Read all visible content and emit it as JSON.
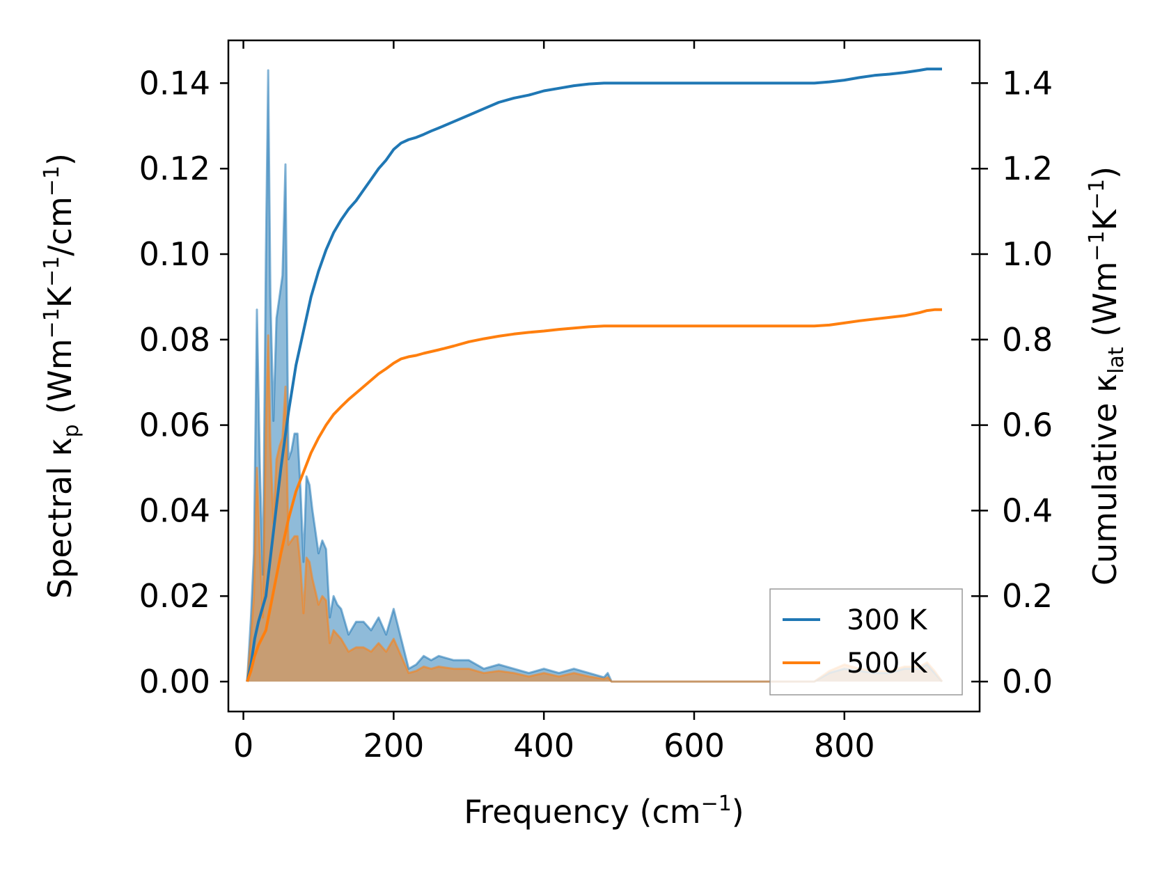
{
  "chart_data": {
    "type": "line",
    "xlabel": "Frequency (cm",
    "xlabel_sup": "−1",
    "xlabel_end": ")",
    "ylabel": {
      "prefix": "Spectral κ",
      "sub": "p",
      "units": [
        {
          "t": " (Wm",
          "s": "−1"
        },
        {
          "t": "K",
          "s": "−1"
        },
        {
          "t": "/cm",
          "s": "−1"
        },
        {
          "t": ")",
          "s": ""
        }
      ]
    },
    "y2label": {
      "prefix": "Cumulative κ",
      "sub": "lat",
      "units": [
        {
          "t": " (Wm",
          "s": "−1"
        },
        {
          "t": "K",
          "s": "−1"
        },
        {
          "t": ")",
          "s": ""
        }
      ]
    },
    "xlim": [
      -20,
      980
    ],
    "ylim": [
      -0.007,
      0.15
    ],
    "y2lim": [
      -0.07,
      1.5
    ],
    "xticks": [
      0,
      200,
      400,
      600,
      800
    ],
    "yticks": [
      0.0,
      0.02,
      0.04,
      0.06,
      0.08,
      0.1,
      0.12,
      0.14
    ],
    "y2ticks": [
      0.0,
      0.2,
      0.4,
      0.6,
      0.8,
      1.0,
      1.2,
      1.4
    ],
    "legend": {
      "position": "lower-right",
      "entries": [
        "300 K",
        "500 K"
      ]
    },
    "colors": {
      "300 K": "#1f77b4",
      "500 K": "#ff7f0e"
    },
    "spectral": [
      {
        "name": "300 K",
        "x": [
          5,
          10,
          14,
          18,
          22,
          26,
          30,
          33,
          36,
          40,
          44,
          48,
          52,
          56,
          60,
          64,
          68,
          72,
          76,
          80,
          84,
          88,
          92,
          96,
          100,
          105,
          110,
          115,
          120,
          125,
          130,
          140,
          150,
          160,
          170,
          180,
          190,
          200,
          210,
          220,
          230,
          240,
          250,
          260,
          280,
          300,
          320,
          340,
          360,
          380,
          400,
          420,
          440,
          460,
          480,
          485,
          490,
          500,
          600,
          700,
          760,
          780,
          800,
          820,
          840,
          860,
          880,
          900,
          910,
          920,
          930
        ],
        "y": [
          0.0,
          0.015,
          0.03,
          0.087,
          0.05,
          0.025,
          0.1,
          0.143,
          0.09,
          0.061,
          0.085,
          0.09,
          0.095,
          0.121,
          0.052,
          0.054,
          0.058,
          0.058,
          0.045,
          0.028,
          0.048,
          0.046,
          0.04,
          0.035,
          0.03,
          0.033,
          0.031,
          0.015,
          0.02,
          0.018,
          0.017,
          0.011,
          0.014,
          0.014,
          0.012,
          0.015,
          0.011,
          0.017,
          0.01,
          0.003,
          0.004,
          0.006,
          0.005,
          0.006,
          0.005,
          0.005,
          0.003,
          0.004,
          0.003,
          0.002,
          0.003,
          0.002,
          0.003,
          0.002,
          0.001,
          0.002,
          0.0,
          0.0,
          0.0,
          0.0,
          0.0,
          0.002,
          0.003,
          0.0025,
          0.002,
          0.002,
          0.003,
          0.003,
          0.004,
          0.002,
          0.0
        ]
      },
      {
        "name": "500 K",
        "x": [
          5,
          10,
          14,
          18,
          22,
          26,
          30,
          33,
          36,
          40,
          44,
          48,
          52,
          56,
          60,
          64,
          68,
          72,
          76,
          80,
          84,
          88,
          92,
          96,
          100,
          105,
          110,
          115,
          120,
          125,
          130,
          140,
          150,
          160,
          170,
          180,
          190,
          200,
          210,
          220,
          230,
          240,
          250,
          260,
          280,
          300,
          320,
          340,
          360,
          380,
          400,
          420,
          440,
          460,
          480,
          485,
          490,
          500,
          600,
          700,
          760,
          780,
          800,
          820,
          840,
          860,
          880,
          900,
          910,
          920,
          930
        ],
        "y": [
          0.0,
          0.01,
          0.02,
          0.05,
          0.03,
          0.015,
          0.06,
          0.081,
          0.055,
          0.037,
          0.052,
          0.055,
          0.057,
          0.069,
          0.032,
          0.033,
          0.034,
          0.034,
          0.027,
          0.016,
          0.029,
          0.028,
          0.024,
          0.021,
          0.018,
          0.02,
          0.019,
          0.009,
          0.012,
          0.011,
          0.01,
          0.007,
          0.008,
          0.008,
          0.007,
          0.009,
          0.007,
          0.01,
          0.006,
          0.002,
          0.0025,
          0.0035,
          0.003,
          0.0035,
          0.003,
          0.003,
          0.002,
          0.0025,
          0.002,
          0.0012,
          0.002,
          0.0012,
          0.002,
          0.0012,
          0.0006,
          0.001,
          0.0,
          0.0,
          0.0,
          0.0,
          0.0,
          0.0025,
          0.004,
          0.003,
          0.0025,
          0.0025,
          0.0035,
          0.0035,
          0.0045,
          0.0025,
          0.0
        ]
      }
    ],
    "cumulative": [
      {
        "name": "300 K",
        "x": [
          5,
          10,
          15,
          20,
          30,
          40,
          50,
          60,
          70,
          80,
          90,
          100,
          110,
          120,
          130,
          140,
          150,
          160,
          170,
          180,
          190,
          200,
          210,
          220,
          230,
          240,
          250,
          260,
          280,
          300,
          320,
          340,
          360,
          380,
          400,
          420,
          440,
          460,
          480,
          500,
          600,
          700,
          760,
          780,
          800,
          820,
          840,
          860,
          880,
          900,
          910,
          920,
          930
        ],
        "y": [
          0.0,
          0.04,
          0.1,
          0.14,
          0.2,
          0.35,
          0.5,
          0.63,
          0.74,
          0.82,
          0.9,
          0.96,
          1.01,
          1.05,
          1.08,
          1.105,
          1.125,
          1.15,
          1.175,
          1.2,
          1.22,
          1.245,
          1.26,
          1.268,
          1.273,
          1.28,
          1.288,
          1.295,
          1.31,
          1.325,
          1.34,
          1.355,
          1.365,
          1.372,
          1.382,
          1.388,
          1.394,
          1.398,
          1.4,
          1.4,
          1.4,
          1.4,
          1.4,
          1.403,
          1.407,
          1.413,
          1.418,
          1.421,
          1.425,
          1.43,
          1.433,
          1.433,
          1.433
        ]
      },
      {
        "name": "500 K",
        "x": [
          5,
          10,
          15,
          20,
          30,
          40,
          50,
          60,
          70,
          80,
          90,
          100,
          110,
          120,
          130,
          140,
          150,
          160,
          170,
          180,
          190,
          200,
          210,
          220,
          230,
          240,
          250,
          260,
          280,
          300,
          320,
          340,
          360,
          380,
          400,
          420,
          440,
          460,
          480,
          500,
          600,
          700,
          760,
          780,
          800,
          820,
          840,
          860,
          880,
          900,
          910,
          920,
          930
        ],
        "y": [
          0.0,
          0.025,
          0.06,
          0.085,
          0.12,
          0.21,
          0.3,
          0.38,
          0.445,
          0.49,
          0.535,
          0.57,
          0.6,
          0.625,
          0.643,
          0.66,
          0.675,
          0.69,
          0.705,
          0.72,
          0.732,
          0.745,
          0.755,
          0.76,
          0.763,
          0.768,
          0.772,
          0.776,
          0.785,
          0.795,
          0.802,
          0.808,
          0.813,
          0.817,
          0.82,
          0.824,
          0.827,
          0.83,
          0.832,
          0.832,
          0.832,
          0.832,
          0.832,
          0.834,
          0.839,
          0.844,
          0.848,
          0.852,
          0.856,
          0.863,
          0.868,
          0.87,
          0.87
        ]
      }
    ]
  }
}
